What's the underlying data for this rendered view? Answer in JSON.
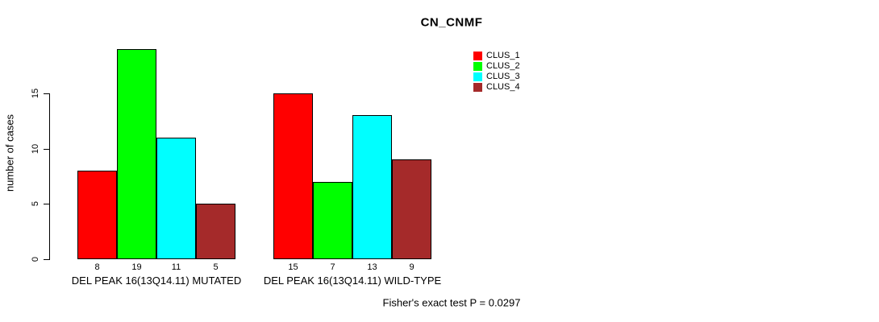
{
  "chart_data": {
    "type": "bar",
    "title": "CN_CNMF",
    "ylabel": "number of cases",
    "xlabel": "",
    "annotation": "Fisher's exact test P = 0.0297",
    "categories": [
      "DEL PEAK 16(13Q14.11) MUTATED",
      "DEL PEAK 16(13Q14.11) WILD-TYPE"
    ],
    "series": [
      {
        "name": "CLUS_1",
        "color": "#ff0000",
        "values": [
          8,
          15
        ]
      },
      {
        "name": "CLUS_2",
        "color": "#00ff00",
        "values": [
          19,
          7
        ]
      },
      {
        "name": "CLUS_3",
        "color": "#00ffff",
        "values": [
          11,
          13
        ]
      },
      {
        "name": "CLUS_4",
        "color": "#a52a2a",
        "values": [
          5,
          9
        ]
      }
    ],
    "yticks": [
      0,
      5,
      10,
      15
    ],
    "ylim": [
      0,
      19
    ],
    "grid": false,
    "legend_position": "top-right",
    "bar_value_labels": true,
    "background": "#ffffff"
  }
}
